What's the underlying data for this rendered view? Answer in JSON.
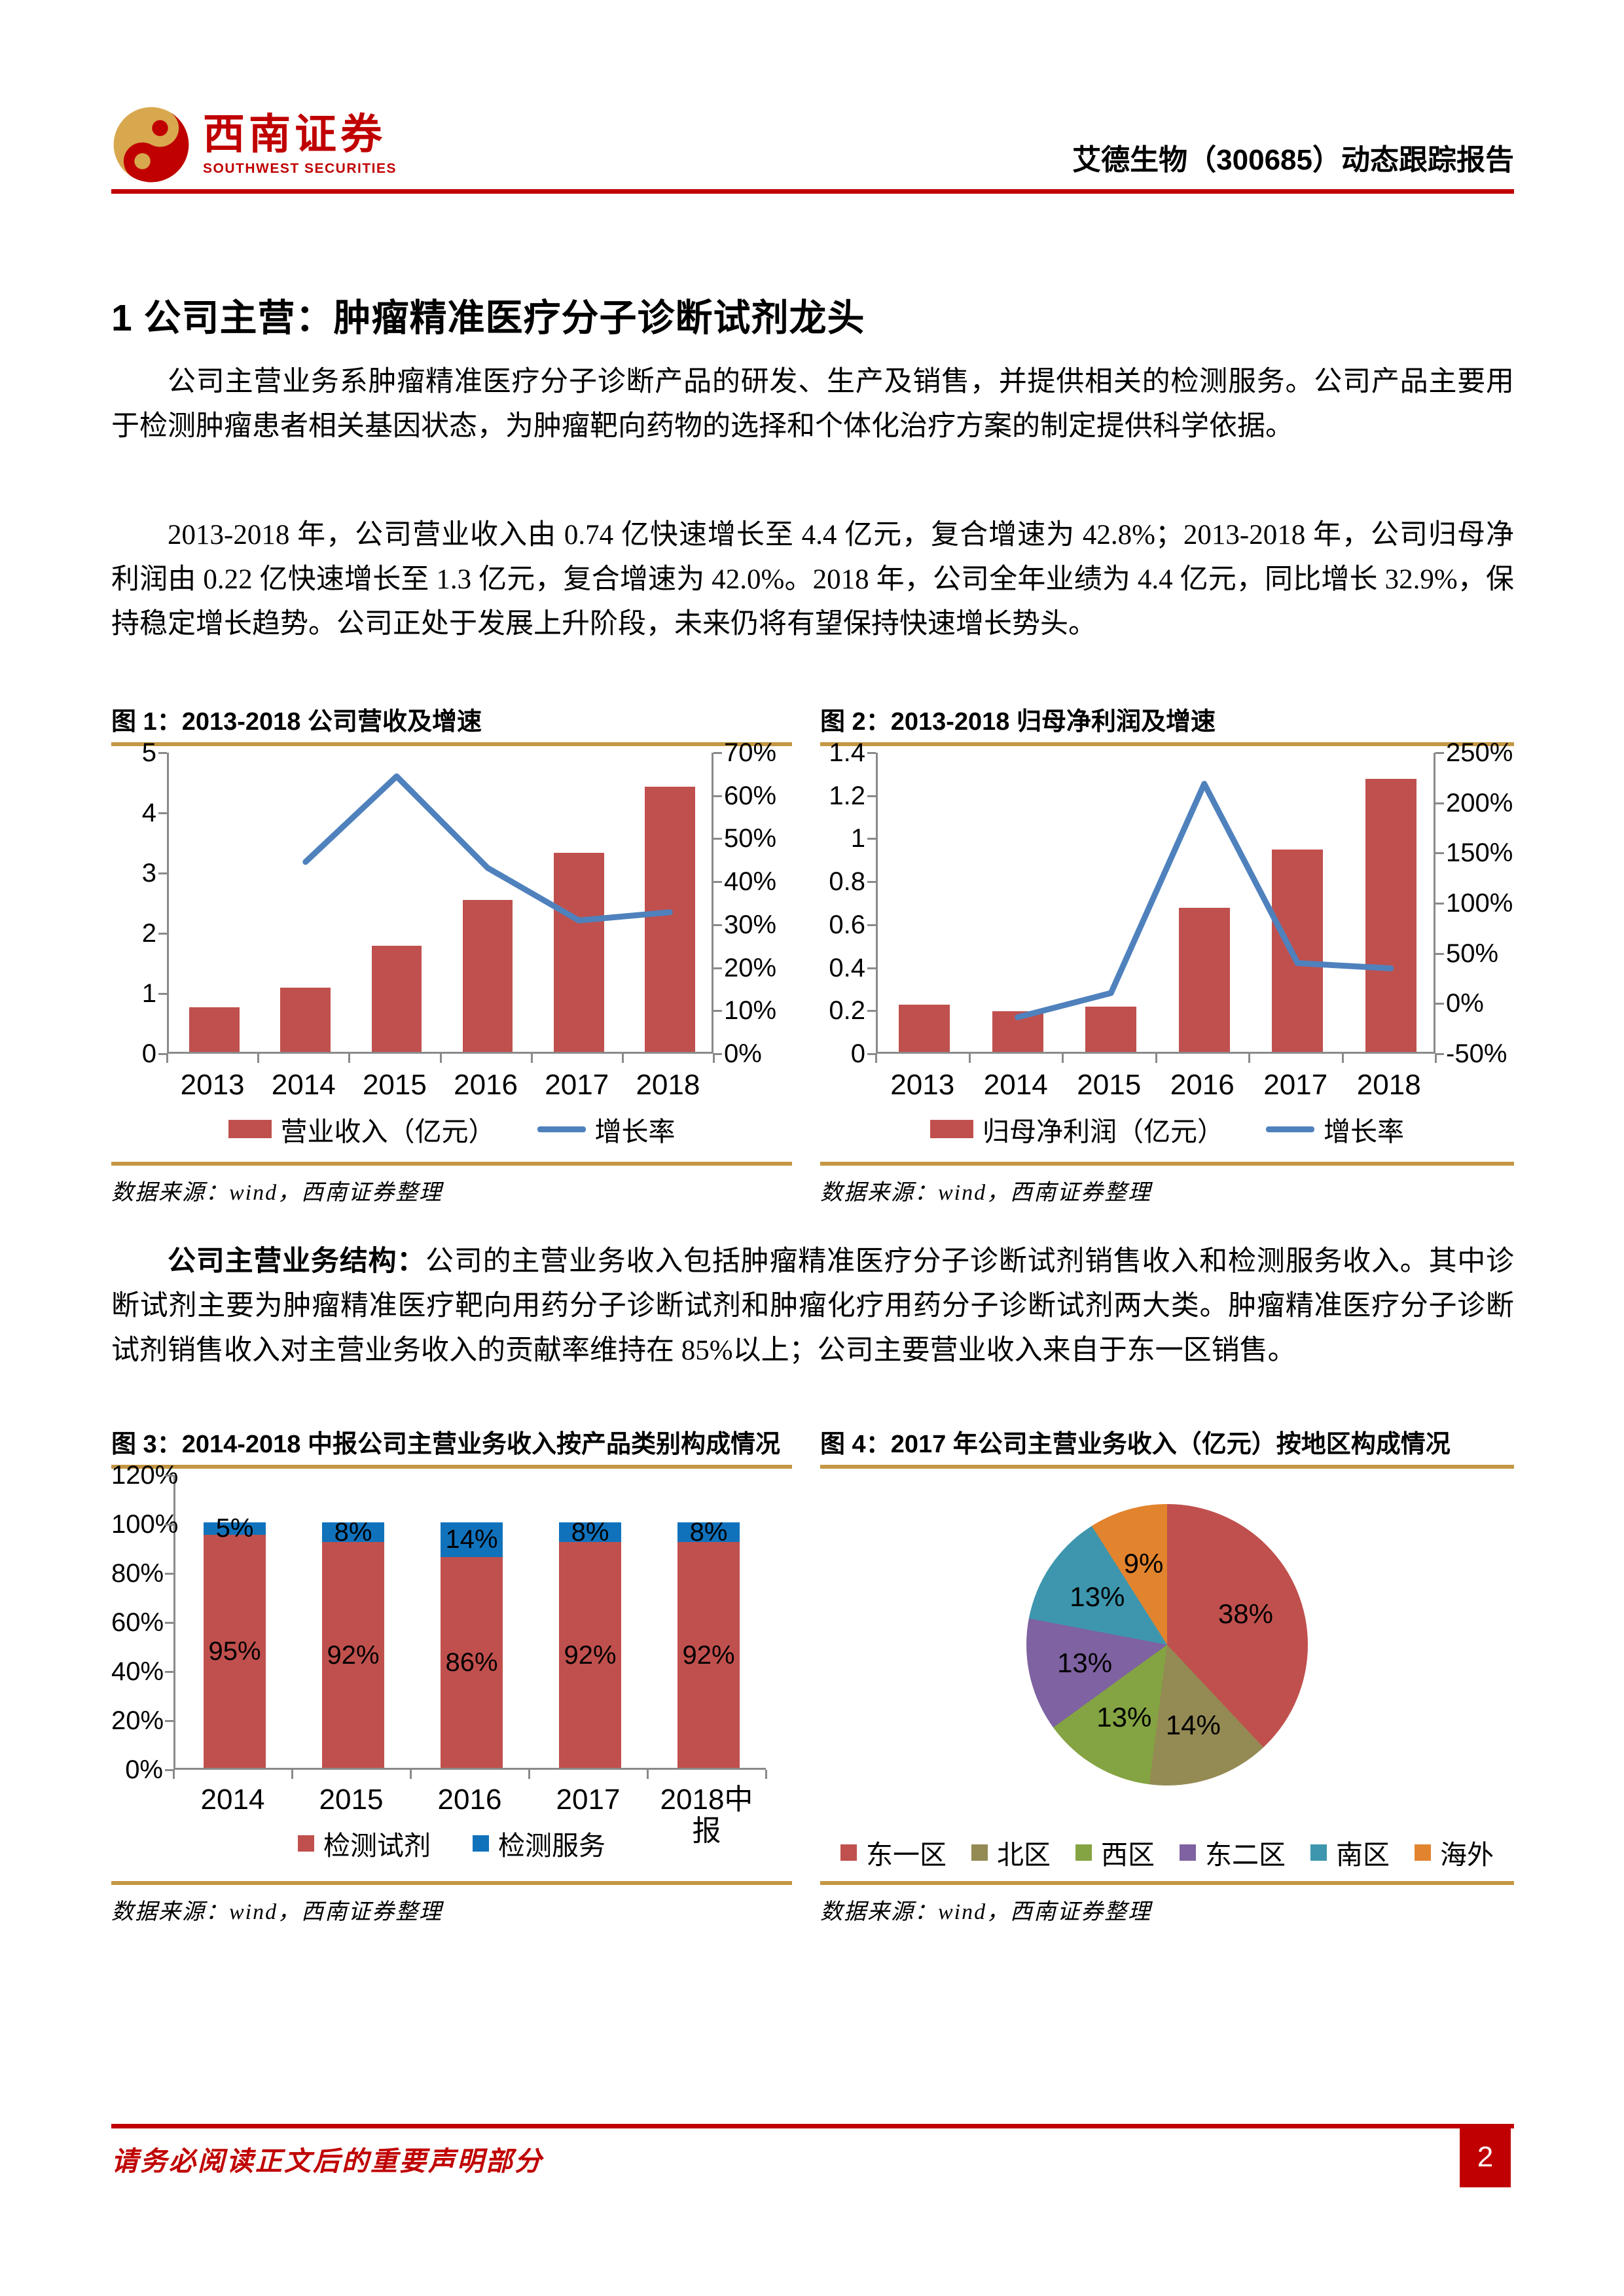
{
  "header": {
    "logo_cn": "西南证券",
    "logo_en": "SOUTHWEST SECURITIES",
    "report_title": "艾德生物（300685）动态跟踪报告"
  },
  "section": {
    "heading": "1 公司主营：肿瘤精准医疗分子诊断试剂龙头"
  },
  "paragraphs": {
    "p1": "公司主营业务系肿瘤精准医疗分子诊断产品的研发、生产及销售，并提供相关的检测服务。公司产品主要用于检测肿瘤患者相关基因状态，为肿瘤靶向药物的选择和个体化治疗方案的制定提供科学依据。",
    "p2": "2013-2018 年，公司营业收入由 0.74 亿快速增长至 4.4 亿元，复合增速为 42.8%；2013-2018 年，公司归母净利润由 0.22 亿快速增长至 1.3 亿元，复合增速为 42.0%。2018 年，公司全年业绩为 4.4 亿元，同比增长 32.9%，保持稳定增长趋势。公司正处于发展上升阶段，未来仍将有望保持快速增长势头。",
    "p3_lead": "公司主营业务结构：",
    "p3": "公司的主营业务收入包括肿瘤精准医疗分子诊断试剂销售收入和检测服务收入。其中诊断试剂主要为肿瘤精准医疗靶向用药分子诊断试剂和肿瘤化疗用药分子诊断试剂两大类。肿瘤精准医疗分子诊断试剂销售收入对主营业务收入的贡献率维持在 85%以上；公司主要营业收入来自于东一区销售。"
  },
  "figures": [
    {
      "title": "图 1：2013-2018 公司营收及增速",
      "source": "数据来源：wind，西南证券整理"
    },
    {
      "title": "图 2：2013-2018 归母净利润及增速",
      "source": "数据来源：wind，西南证券整理"
    },
    {
      "title": "图 3：2014-2018 中报公司主营业务收入按产品类别构成情况",
      "source": "数据来源：wind，西南证券整理"
    },
    {
      "title": "图 4：2017 年公司主营业务收入（亿元）按地区构成情况",
      "source": "数据来源：wind，西南证券整理"
    }
  ],
  "chart_data": [
    {
      "type": "bar+line",
      "title": "2013-2018 公司营收及增速",
      "categories": [
        "2013",
        "2014",
        "2015",
        "2016",
        "2017",
        "2018"
      ],
      "bar": {
        "name": "营业收入（亿元）",
        "color": "#C0504D",
        "values": [
          0.74,
          1.07,
          1.76,
          2.52,
          3.3,
          4.4
        ]
      },
      "line": {
        "name": "增长率",
        "color": "#4F81BD",
        "values": [
          null,
          44.6,
          64.5,
          43.2,
          31.0,
          32.9
        ]
      },
      "left_axis": {
        "min": 0,
        "max": 5,
        "ticks": [
          "0",
          "1",
          "2",
          "3",
          "4",
          "5"
        ]
      },
      "right_axis": {
        "min": 0,
        "max": 70,
        "ticks": [
          "0%",
          "10%",
          "20%",
          "30%",
          "40%",
          "50%",
          "60%",
          "70%"
        ]
      },
      "legend_position": "bottom",
      "grid": false
    },
    {
      "type": "bar+line",
      "title": "2013-2018 归母净利润及增速",
      "categories": [
        "2013",
        "2014",
        "2015",
        "2016",
        "2017",
        "2018"
      ],
      "bar": {
        "name": "归母净利润（亿元）",
        "color": "#C0504D",
        "values": [
          0.22,
          0.19,
          0.21,
          0.67,
          0.94,
          1.27
        ]
      },
      "line": {
        "name": "增长率",
        "color": "#4F81BD",
        "values": [
          null,
          -13.6,
          10.5,
          219.0,
          40.3,
          35.1
        ]
      },
      "left_axis": {
        "min": 0,
        "max": 1.4,
        "ticks": [
          "0",
          "0.2",
          "0.4",
          "0.6",
          "0.8",
          "1",
          "1.2",
          "1.4"
        ]
      },
      "right_axis": {
        "min": -50,
        "max": 250,
        "ticks": [
          "-50%",
          "0%",
          "50%",
          "100%",
          "150%",
          "200%",
          "250%"
        ]
      },
      "legend_position": "bottom",
      "grid": false
    },
    {
      "type": "stacked-bar",
      "title": "2014-2018 中报公司主营业务收入按产品类别构成情况",
      "categories": [
        "2014",
        "2015",
        "2016",
        "2017",
        "2018中报"
      ],
      "series": [
        {
          "name": "检测试剂",
          "color": "#C0504D",
          "values": [
            95,
            92,
            86,
            92,
            92
          ]
        },
        {
          "name": "检测服务",
          "color": "#1172BC",
          "values": [
            5,
            8,
            14,
            8,
            8
          ]
        }
      ],
      "left_axis": {
        "min": 0,
        "max": 120,
        "ticks": [
          "0%",
          "20%",
          "40%",
          "60%",
          "80%",
          "100%",
          "120%"
        ]
      },
      "label_suffix": "%",
      "legend_position": "bottom",
      "grid": false
    },
    {
      "type": "pie",
      "title": "2017 年公司主营业务收入（亿元）按地区构成情况",
      "slices": [
        {
          "name": "东一区",
          "value": 38,
          "color": "#C0504D"
        },
        {
          "name": "北区",
          "value": 14,
          "color": "#948A54"
        },
        {
          "name": "西区",
          "value": 13,
          "color": "#84A342"
        },
        {
          "name": "东二区",
          "value": 13,
          "color": "#7E62A1"
        },
        {
          "name": "南区",
          "value": 13,
          "color": "#3D96AE"
        },
        {
          "name": "海外",
          "value": 9,
          "color": "#E2832E"
        }
      ],
      "label_suffix": "%",
      "legend_position": "bottom"
    }
  ],
  "colors": {
    "accent_red": "#C00000",
    "gold_rule": "#C49743",
    "bar_red": "#C0504D",
    "line_blue": "#4F81BD",
    "service_blue": "#1172BC",
    "axis_gray": "#8A8A8A"
  },
  "footer": {
    "disclaimer": "请务必阅读正文后的重要声明部分",
    "page_number": "2"
  }
}
